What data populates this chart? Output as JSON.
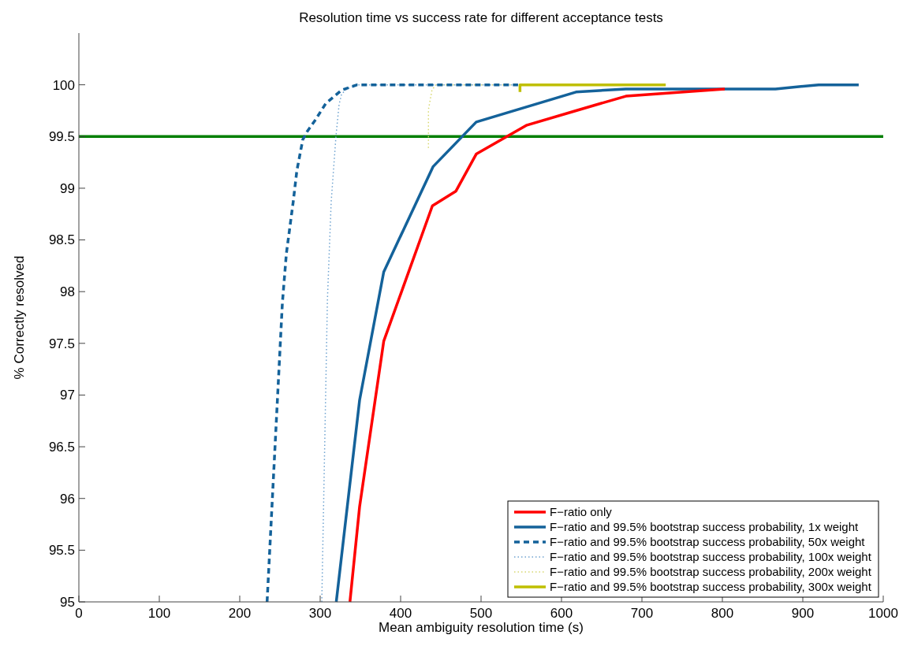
{
  "chart_data": {
    "type": "line",
    "title": "Resolution time vs success rate for different acceptance tests",
    "xlabel": "Mean ambiguity resolution time (s)",
    "ylabel": "% Correctly resolved",
    "xlim": [
      0,
      1000
    ],
    "xticks": [
      0,
      100,
      200,
      300,
      400,
      500,
      600,
      700,
      800,
      900,
      1000
    ],
    "ylim": [
      95,
      100.5
    ],
    "yticks": [
      95,
      95.5,
      96,
      96.5,
      97,
      97.5,
      98,
      98.5,
      99,
      99.5,
      100
    ],
    "grid": false,
    "legend": "bottom right",
    "ref_lines": [
      {
        "axis": "y",
        "value": 99.5,
        "color": "#007f00",
        "line_style": "solid"
      }
    ],
    "series": [
      {
        "name": "F−ratio only",
        "color": "#ff0000",
        "line_style": "solid",
        "x": [
          337,
          349,
          379,
          439.5,
          468.6,
          494,
          557,
          618,
          680,
          803
        ],
        "values": [
          95,
          95.92,
          97.52,
          98.83,
          98.97,
          99.33,
          99.61,
          99.75,
          99.89,
          99.96
        ]
      },
      {
        "name": "F−ratio and 99.5% bootstrap success probability, 1x weight",
        "color": "#14629a",
        "line_style": "solid",
        "x": [
          320,
          349,
          379,
          440.5,
          494,
          618,
          680,
          866,
          919.6,
          969.5
        ],
        "values": [
          95,
          96.95,
          98.19,
          99.21,
          99.64,
          99.93,
          99.96,
          99.96,
          100,
          100
        ]
      },
      {
        "name": "F−ratio and 99.5% bootstrap success probability, 50x weight",
        "color": "#14629a",
        "line_style": "dashed",
        "x": [
          234,
          253,
          258,
          266.5,
          271,
          278.4,
          284,
          294,
          307,
          327,
          346,
          546
        ],
        "values": [
          95,
          97.89,
          98.37,
          98.87,
          99.17,
          99.47,
          99.55,
          99.66,
          99.82,
          99.95,
          100,
          100
        ]
      },
      {
        "name": "F−ratio and 99.5% bootstrap success probability, 100x weight",
        "color": "#6fa3d0",
        "line_style": "dotted",
        "x": [
          302,
          309,
          313.7,
          319.6,
          323.5,
          326.6,
          333,
          346,
          546
        ],
        "values": [
          95,
          97.92,
          98.87,
          99.5,
          99.81,
          99.91,
          99.96,
          100,
          100
        ]
      },
      {
        "name": "F−ratio and 99.5% bootstrap success probability, 200x weight",
        "color": "#d8d870",
        "line_style": "dotted",
        "x": [
          434.6,
          434.6,
          439,
          444,
          546
        ],
        "values": [
          99.39,
          99.76,
          99.95,
          100,
          100
        ]
      },
      {
        "name": "F−ratio and 99.5% bootstrap success probability, 300x weight",
        "color": "#bfbf00",
        "line_style": "solid",
        "x": [
          548.4,
          548.4,
          729.6
        ],
        "values": [
          99.93,
          100,
          100
        ]
      }
    ]
  }
}
